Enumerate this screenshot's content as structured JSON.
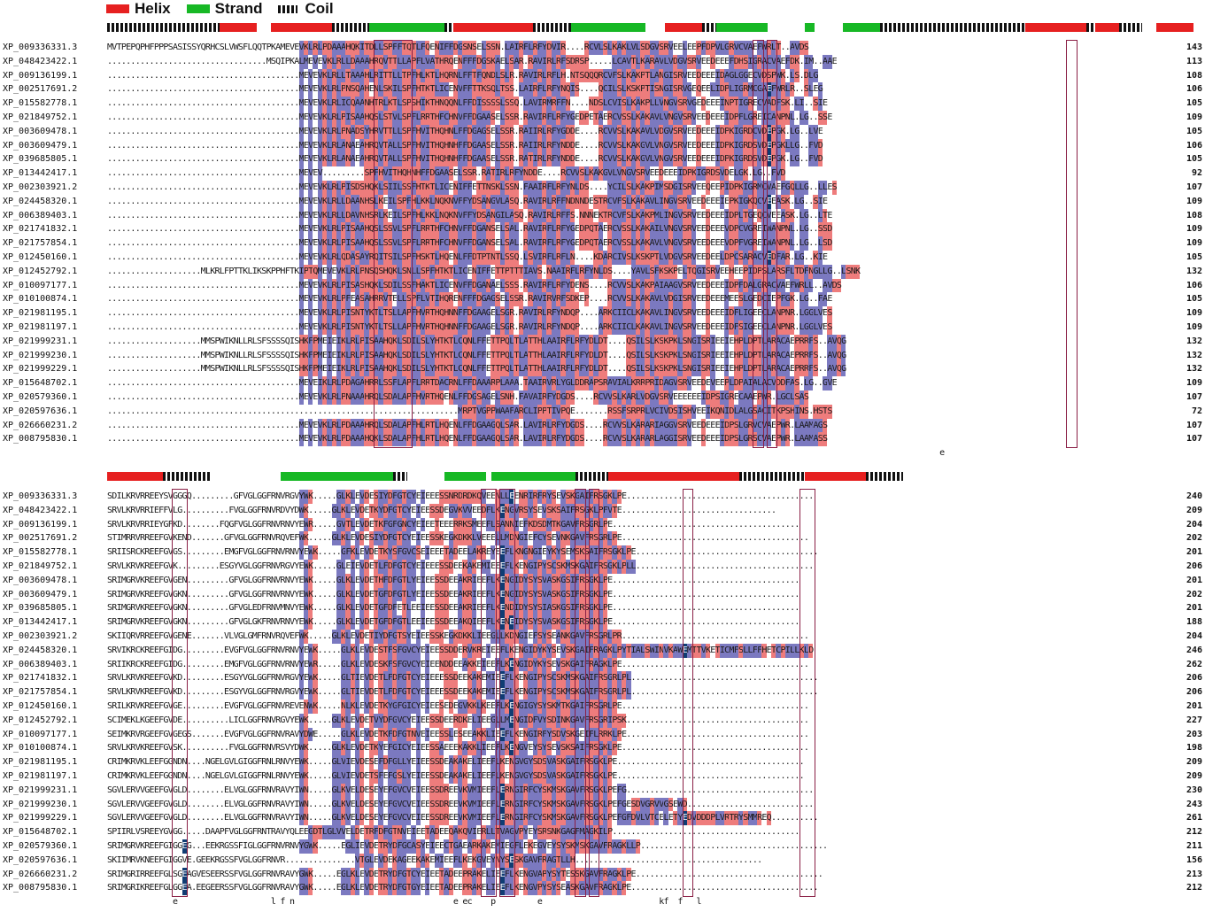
{
  "legend": [
    {
      "label": "Helix",
      "color": "#e62020",
      "kind": "helix"
    },
    {
      "label": "Strand",
      "color": "#17b825",
      "kind": "strand"
    },
    {
      "label": "Coil",
      "color": "#111111",
      "kind": "coil"
    }
  ],
  "colors": {
    "conserved_blue": "#7b79c0",
    "similar_red": "#ee7c7c",
    "identical_dark": "#0f3c73",
    "box": "#8a1f45"
  },
  "blocks": [
    {
      "ss": [
        {
          "t": "coil",
          "s": 0,
          "e": 24
        },
        {
          "t": "helix",
          "s": 24,
          "e": 32
        },
        {
          "t": "helix",
          "s": 35,
          "e": 48
        },
        {
          "t": "coil",
          "s": 48,
          "e": 56
        },
        {
          "t": "strand",
          "s": 56,
          "e": 72
        },
        {
          "t": "coil",
          "s": 72,
          "e": 74
        },
        {
          "t": "helix",
          "s": 74,
          "e": 91
        },
        {
          "t": "coil",
          "s": 91,
          "e": 99
        },
        {
          "t": "strand",
          "s": 99,
          "e": 115
        },
        {
          "t": "helix",
          "s": 119,
          "e": 127
        },
        {
          "t": "coil",
          "s": 127,
          "e": 130
        },
        {
          "t": "strand",
          "s": 130,
          "e": 141
        },
        {
          "t": "strand",
          "s": 149,
          "e": 151
        },
        {
          "t": "strand",
          "s": 157,
          "e": 165
        },
        {
          "t": "coil",
          "s": 165,
          "e": 196
        },
        {
          "t": "helix",
          "s": 196,
          "e": 209
        },
        {
          "t": "coil",
          "s": 209,
          "e": 211
        },
        {
          "t": "helix",
          "s": 211,
          "e": 216
        },
        {
          "t": "coil",
          "s": 216,
          "e": 221
        },
        {
          "t": "helix",
          "s": 224,
          "e": 232
        }
      ],
      "rows": [
        {
          "id": "XP_009336331.3",
          "seq": "MVTPEPQPHFPPPSASISSYQRHCSLVWSFLQQTPKAMEVEVKLRLPDAAAHQKITDLLSPFFTQTLFQENIFFDGSNSELSSN.LAIRFLRFYDVIR....RCVLSLKAKLVLSDGVSRVEELEEPFDPVLGRVCVAEFWRLT..AVDS",
          "num": "143"
        },
        {
          "id": "XP_048423422.1",
          "seq": "..................................MSQIPKALMEVEVKLRLLDAAAHRQVTTLLAPFLVATHRQENFFFDGSKAELSAR.RAVIRLRFSDRSP.....LCAVTLKARAVLVDGVSRVEEDEEEFDHSIGRACVAEFDK.IM..AAE",
          "num": "113"
        },
        {
          "id": "XP_009136199.1",
          "seq": ".........................................MEVEVKLRLLTAAAHLRITTLLTPFHLKTLHQRNLFFTFQNDLSLR.RAVIRLRFLH.NTSQQQRCVFSLKAKPTLANGISRVEEDEEEIDAGLGGECVDSPWK.LS.DLG",
          "num": "108"
        },
        {
          "id": "XP_002517691.2",
          "seq": ".........................................MEVEVKLRLPNSQAHENLSKILSPFHTKTLICENVFFTTKSQLTSS.LAIRFLRFYNQIS....QCILSLKSKPTISNGISRVGEQEELIDPLIGRMCGAEFWRLR..SLEG",
          "num": "106"
        },
        {
          "id": "XP_015582778.1",
          "seq": ".........................................MEVEVKLRLICQAANHTRLKTLSPSHIKTHNQQNLFFDISSSSLSSQ.LAVIRMRFFN....NDSLCVISLKAKPLLVNGVSRVGEDEEEINPTIGRECVADFSK.LI..SIE",
          "num": "105"
        },
        {
          "id": "XP_021849752.1",
          "seq": ".........................................MEVEVKLRLPISAAHQSLSTVLSPFLRRTHFCHNVFFDGAASELSSR.RAVIRFLRFYGEDPETAERCVSSLKAKAVLVNGVSRVEEDEEEIDPFLGREICANPNL.LG..SSE",
          "num": "109"
        },
        {
          "id": "XP_003609478.1",
          "seq": ".........................................MEVEVKLRLPNADSYHRVTTLLSPFHVITHQHNLFFDGAGSELSSR.RAIIRLRFYGDDE....RCVVSLKAKAVLVDGVSRVEEDEEEIDPKIGRDCVDEPGK.LG..LVE",
          "num": "105"
        },
        {
          "id": "XP_003609479.1",
          "seq": ".........................................MEVEVKLRLANAEAHRQVTALLSPFHVITHQHNHFFDGAASELSSR.RAIIRLRFYNDDE....RCVVSLKAKGVLVNGVSRVEEDEEEIDPKIGRDSVDEPGKLLG..FVD",
          "num": "106"
        },
        {
          "id": "XP_039685805.1",
          "seq": ".........................................MEVEVKLRLANAEAHRQVTALLSPFHVITHQHNHFFDGAASELSSR.RATIRLRFYNDDE....RCVVSLKAKGVLVNGVSRVEEDEEEIDPKIGRDSVDEPGK.LG..FVD",
          "num": "105"
        },
        {
          "id": "XP_013442417.1",
          "seq": ".........................................MEVEV.........SPFHVITHQHNHFFDGAASELSSR.RATIRLRFYNDDE....RCVVSLKAKGVLVNGVSRVEEDEEEIDPKIGRDSVDELGK.LG..FVD",
          "num": "92"
        },
        {
          "id": "XP_002303921.2",
          "seq": ".........................................MEVEVKLRLPISDSHQKLSIILSSFHTKTLICENIFFETTNSKLSSN.FAAIRFLRFYNLDS....YCILSLKAKPIMSDGISRVEEQEEPIDPKIGRMCVAEFGQLLG..LLES",
          "num": "107"
        },
        {
          "id": "XP_024458320.1",
          "seq": ".........................................MEVEVKLRLLDAANHSLKEILSPFHLKKLNQKNVFFYDSANGVLASQ.RAVIRLRFFNDNNDESTRCVFSLKAKAVLINGVSRVEEDEEEIEPKIGKQCVEEASK.LG..SIE",
          "num": "109"
        },
        {
          "id": "XP_006389403.1",
          "seq": ".........................................MEVEVKLRLLDAVNHSRLKEILSPFHLKKLNQKNVFFYDSANGILASQ.RAVIRLRFFS.NNNEKTRCVFSLKAKPMLINGVSRVEEDEEEIDPLTGEQCVEEASK.LG..LTE",
          "num": "108"
        },
        {
          "id": "XP_021741832.1",
          "seq": ".........................................MEVEVKLRLPISAAHQSLSSVLSPFLRRTHFCHNVFFDGANSELSAL.RAVIRFLRFYGEDPQTAERCVSSLKAKAILVNGVSRVEEDEEEVDPCVGREIWANPNL.LG..SSD",
          "num": "109"
        },
        {
          "id": "XP_021757854.1",
          "seq": ".........................................MEVEVKLRLPISAAHQSLSSVLSPFLRRTHFCHNVFFDGANSELSAL.RAVIRFLRFYGEDPQTAERCVSSLKAKAVLVNGVSRVEEDEEEVDPFVGREIWANPNL.LG..LSD",
          "num": "109"
        },
        {
          "id": "XP_012450160.1",
          "seq": ".........................................MEVEVKLRLQDASAYRQITSILSPFHSKTLHQENLFFDTPTNTLSSQ.LSVIRFLRFLN....KDARCIVSLKSKPTLVDGVSRVEEDEELDPCSARACVEDFAR.LG..KIE",
          "num": "105"
        },
        {
          "id": "XP_012452792.1",
          "seq": "....................MLKRLFPTTKLIKSKPPHFTKIPTQMEVEVKLRLPNSQSHQKLSNLLSPFHTKTLICENIFFETTPTTTIAVS.NAAIRFLRFYNLDS....YAVLSFKSKPELTQGISRVEEHEEPIDPSLARSFLTDFNGLLG..LSNK",
          "num": "132"
        },
        {
          "id": "XP_010097177.1",
          "seq": ".........................................MEVEVKLRLPISASHQKLSDILSSFHAKTLICENVFFDGANAELSSS.RAVIRFLRFYDENS....RCVVSLKAKPAIAAGVSRVEEDEEEIDPFDALGRACVAEFWRLL..AVDS",
          "num": "106"
        },
        {
          "id": "XP_010100874.1",
          "seq": ".........................................MEVEVKLRLPFEASAHRRVTELLSPFLVTIHQRENFFFDGAGSELSSR.RAVIRVRFSDKEP....RCVVSLKAKAVLVDGISRVEEDEEEMEESLGEDCIEPFGK.LG..FAE",
          "num": "105"
        },
        {
          "id": "XP_021981195.1",
          "seq": ".........................................MEVEVKLRLPISNTYKTLTSLLAPFHVRTHQHNNFFDGAAGELSGR.RAVIRLRFYNDQP....ARKCIICLKAKAVLINGVSRVEEDEEEIDFLIGEECLANPNR.LGGLVES",
          "num": "109"
        },
        {
          "id": "XP_021981197.1",
          "seq": ".........................................MEVEVKLRLPISNTYKTLTSLLAPFHVRTHQHNNFFDGAAGELSGR.RAVIRLRFYNDQP....ARKCIICLKAKAVLINGVSRVEEDEEEIDFSIGEECLANPNR.LGGLVES",
          "num": "109"
        },
        {
          "id": "XP_021999231.1",
          "seq": "....................MMSPWIKNLLRLSFSSSSQISHKFPMEIEIKLRLPISAAHQKLSDILSLYHTKTLCQNLFFETTPQLTLATTHLAAIRFLRFYDLDT....QSILSLKSKPKLSNGISRIEEIEHPLDPTLARACAEPRRFS..AVQG",
          "num": "132"
        },
        {
          "id": "XP_021999230.1",
          "seq": "....................MMSPWIKNLLRLSFSSSSQISHKFPMEIEIKLRLPISAAHQKLSDILSLYHTKTLCQNLFFETTPQLTLATTHLAAIRFLRFYDLDT....QSILSLKSKPKLSNGISRIEEIEHPLDPTLARACAEPRRFS..AVQG",
          "num": "132"
        },
        {
          "id": "XP_021999229.1",
          "seq": "....................MMSPWIKNLLRLSFSSSSQISHKFPMEIEIKLRLPISAAHQKLSDILSLYHTKTLCQNLFFETTPQLTLATTHLAAIRFLRFYDLDT....QSILSLKSKPKLSNGISRIEEIEHPLDPTLARACAEPRRFS..AVQG",
          "num": "132"
        },
        {
          "id": "XP_015648702.1",
          "seq": ".........................................MEVEIKLRLPDAGAHRRLSSFLAPFLRRTDACRNLFFDAAARPLAAA.TAAIRVRLYGLDDRAPSRAVIALKRRPRIDAGVSRVEEDEVEEPLDPAIALACVDDFAS.LG..GVE",
          "num": "109"
        },
        {
          "id": "XP_020579360.1",
          "seq": ".........................................MEVEVKLRLPNAAAHRQLSDALAPFHVRTHQENLFFDGSAGELSNH.FAVAIRFYDGDS....RCVVSLKARLVDGVSRVEEEEEEIDPSIGRECAAEPWR.LGCLSAS",
          "num": "107"
        },
        {
          "id": "XP_020597636.1",
          "seq": "...........................................................................MRPTVGPPWAAFARCLIPPTIVPQE.......RSSFSRPRLVCIVDSISHVEEIKQNIDLALGSACITKPSHINS.HSTS",
          "num": "72"
        },
        {
          "id": "XP_026660231.2",
          "seq": ".........................................MEVEVKLRLPDAAAHRQLSDALAPFHLRTLHQENLFFDGAAGQLSAR.LAVIRLRFYDGDS....RCVVSLKARARIAGGVSRVEEDEEEIDPSLGRVCVAEPWR.LAAMAGS",
          "num": "107"
        },
        {
          "id": "XP_008795830.1",
          "seq": ".........................................MEVEVKLRLPDAAAHQKLSDALAPFHLRTLHQENLFFDGAAGQLSAR.LAVIRLRFYDGDS....RCVVSLKARARLAGGISRVEEDEEEIDPSLGRSCVAEPWR.LAAMASS",
          "num": "107"
        }
      ],
      "consensus": "..................................................................................................................................................................................e..................................."
    },
    {
      "ss": [
        {
          "t": "helix",
          "s": 0,
          "e": 12
        },
        {
          "t": "coil",
          "s": 12,
          "e": 22
        },
        {
          "t": "strand",
          "s": 37,
          "e": 61
        },
        {
          "t": "coil",
          "s": 61,
          "e": 64
        },
        {
          "t": "strand",
          "s": 72,
          "e": 81
        },
        {
          "t": "strand",
          "s": 82,
          "e": 84
        },
        {
          "t": "strand",
          "s": 84,
          "e": 100
        },
        {
          "t": "coil",
          "s": 100,
          "e": 107
        },
        {
          "t": "helix",
          "s": 107,
          "e": 135
        },
        {
          "t": "coil",
          "s": 135,
          "e": 149
        },
        {
          "t": "helix",
          "s": 149,
          "e": 162
        },
        {
          "t": "coil",
          "s": 162,
          "e": 170
        }
      ],
      "rows": [
        {
          "id": "XP_009336331.3",
          "seq": "SDILKRVRREEYSVGGGQ.........GFVGLGGFRNVRGVYWK.....GLKLEVDESIYDFGTCYEIEEESSNRDRDKQVEENLLEENRIRFRYSEVSKGAIFRSGKLPE........................................",
          "num": "240"
        },
        {
          "id": "XP_048423422.1",
          "seq": "SRVLKRVRRIEFFVLG..........FVGLGGFRNVRDVYDWK.....GLKLEVDETKYDFGTCYEIEESSDEGVKVVEEDFLKENGVRSYSEVSKSAIFRSGKLPFVTE.................................",
          "num": "209"
        },
        {
          "id": "XP_009136199.1",
          "seq": "SRVLKRVRRIEYGFKD........FQGFVGLGGFRNVRNVYEWR.....GVTLEVDETKFGFGNCYEIEETEEERRKSMEEFLSANNIEFKDSDMTKGAVFRSGRLPE........................................",
          "num": "204"
        },
        {
          "id": "XP_002517691.2",
          "seq": "STIMRRVRREEFGVKEND.......GFVGLGGFRNVRQVEFWK.....GLKLEVDESIYDFGTCYEIEESSKEGKDKKLVEEELLMDNGIEFCYSEVNKGAVFRSGRLPE........................................",
          "num": "202"
        },
        {
          "id": "XP_015582778.1",
          "seq": "SRIISRCKREEFGVGS.........EMGFVGLGGFRNVRNVYEWK.....GFKLEVDETKYSFGVCSEIEEETADEELAKREYEEFLKNGNGIEYKYSEMSKSAIFRSGKLPE.......................................",
          "num": "201"
        },
        {
          "id": "XP_021849752.1",
          "seq": "SRVLKRVKREEFGVK.........ESGYVGLGGFRNVRGVYEWK.....GLEIEVDETLFDFGTCYEIEEESSDEEKAKEMIEEEFLKENGIPYSCSKMSKGAIFRSGKLPLL......................................",
          "num": "206"
        },
        {
          "id": "XP_003609478.1",
          "seq": "SRIMGRVKREEFGVGEN.........GFVGLGGFRNVRNVYEWK.....GLKLEVDETHFDFGTLYEIEESSDEEAKRIEEFLKENGIDYSYSVASKGSIFRSGKLPE........................................",
          "num": "201"
        },
        {
          "id": "XP_003609479.1",
          "seq": "SRIMGRVKREEFGVGKN.........GFVGLGGFRNVRNVYEWK.....GLKLEVDETGFDFGTLYEIEESSDEEAKRIEEFLKENGIDYSYSVASKGSIFRSGKLPE........................................",
          "num": "202"
        },
        {
          "id": "XP_039685805.1",
          "seq": "SRIMGRVKREEFGVGKN.........GFVGLEDFRNVMNVYEWK.....GLKLEVDETGFDFETLEEIEESSDEEAKRIEEFLKENDIDYSYSIASKGSIFRSGKLPE........................................",
          "num": "201"
        },
        {
          "id": "XP_013442417.1",
          "seq": "SRIMGRVKREEFGVGKN.........GFVGLGKFRNVRNVYEWK.....GLKLEVDETGFDFGTLEEIEESSDEEAKQIEEFLKENEIDYSYSVASKGSIFRSGKLPE........................................",
          "num": "188"
        },
        {
          "id": "XP_002303921.2",
          "seq": "SKIIQRVRREEFGVGENE.......VLVGLGMFRNVRQVEFWK.....GLKLEVDETIYDFGTSYEIEESSKEGKDKKLIEEGLLKDNGIEFSYSEANKGAVFRSGRLPR........................................",
          "num": "204"
        },
        {
          "id": "XP_024458320.1",
          "seq": "SRVIKRCKREEFGIDG.........EVGFVGLGGFRNVRNVYEWK.....GLKLEVDESTFSFGVCYEIEESSDDERVKREIEEFLKENGIDYKYSEVSKGAIFRAGKLPYTIALSWINVKAWEMTTVKETICMFSLLFFHETCPILLKLD",
          "num": "246"
        },
        {
          "id": "XP_006389403.1",
          "seq": "SRIIKRCKREEFGIDG.........EMGFVGLGGFRNVRNVYEWR.....GLKLEVDESKFSFGVCYEIEENDDEEAKKEIEEFLKENGIDYKYSEVSKGAIFRAGKLPE........................................",
          "num": "262"
        },
        {
          "id": "XP_021741832.1",
          "seq": "SRVLKRVKREEFGVKD.........ESGYVGLGGFRNVRGVYEWK.....GLTIEVDETLFDFGTCYEIEEESSDEEKAKEMIEEFLKENGIPYSCSKMSKGAIFRSGRLPL........................................",
          "num": "206"
        },
        {
          "id": "XP_021757854.1",
          "seq": "SRVLKRVKREEFGVKD.........ESGYVGLGGFRNVRGVYEWK.....GLTIEVDETLFDFGTCYEIEEESSDEEKAKEMIEEFLKENGIPYSCSKMSKGAIFRSGRLPL........................................",
          "num": "206"
        },
        {
          "id": "XP_012450160.1",
          "seq": "SRILKRVKREEFGVGE.........EVGFVGLGGFRNVREVENWK.....NLKLEVDETKYGFGICYEIEESEDEGVKKLKEEFLKENGIGYSYSKMTKGAIFRSGRLPE........................................",
          "num": "201"
        },
        {
          "id": "XP_012452792.1",
          "seq": "SCIMEKLKGEEFGVDE..........LICLGGFRNVRGVYEWK.....GLKLEVDETVYDFGVCYEIEESSDEERDKELIEEGLLMENGIDFVYSDINKGAVFRSGRIPSK.......................................",
          "num": "227"
        },
        {
          "id": "XP_010097177.1",
          "seq": "SEIMKRVRGEEFGVGEGS.......EVGFVGLGGFRNVRAVYDWE.....GLKLEVDETKFDFGTNVEIEESSLESEEAKKLIEEFLKENGIRFYSDVSKGEIFLRRKLPE.......................................",
          "num": "203"
        },
        {
          "id": "XP_010100874.1",
          "seq": "SRVLKRVKREEFGVSK..........FVGLGGFRNVRSVYDWK.....GLKLEVDETKYEFGICYEIEESSAEEEKAKKLIEEFLKENGVEYSYSEVSKSAIFRSGKLPE........................................",
          "num": "198"
        },
        {
          "id": "XP_021981195.1",
          "seq": "CRIMKRVKLEEFGGNDN....NGELGVLGIGGFRNLRNVYEWK.....GLVIEVDESEFDFGLLYEIEESSDEAKAKELIEEFLKENGVGYSDSVASKGAIFRSGKLPE........................................",
          "num": "209"
        },
        {
          "id": "XP_021981197.1",
          "seq": "CRIMKRVKLEEFGGNDN....NGELGVLGIGGFRNLRNVYEWK.....GLVIEVDETSFEFGSLYEIEESSDEAKAKELIEEFLKENGVGYSDSVASKGAIFRSGKLPE........................................",
          "num": "209"
        },
        {
          "id": "XP_021999231.1",
          "seq": "SGVLERVVGEEFGVGLD........ELVGLGGFRNVRAVYIWN.....GLKVELDESEYEFGVCVEIEESSDREEVKVMIEEFLERNGIRFCYSKMSKGAVFRSGKLPEFG........................................",
          "num": "230"
        },
        {
          "id": "XP_021999230.1",
          "seq": "SGVLERVVGEEFGVGLD........ELVGLGGFRNVRAVYIWN.....GLKVELDESEYEFGVCVEIEESSDREEVKVMIEEFLERNGIRFCYSKMSKGAVFRSGKLPEFGESDVGRVVGSEWD...........................",
          "num": "243"
        },
        {
          "id": "XP_021999229.1",
          "seq": "SGVLERVVGEEFGVGLD........ELVGLGGFRNVRAVYIWN.....GLKVELDESEYEFGVCVEIEESSDREEVKVMIEEFLERNGIRFCYSKMSKGAVFRSGKLPEFGFDVLVTCELETYEDVDDDPLVRTRYSMMREQ..........",
          "num": "261"
        },
        {
          "id": "XP_015648702.1",
          "seq": "SPIIRLVSREEYGVGG.....DAAPFVGLGGFRNTRAVYQLEEGDTLGLVVELDETRFDFGTNVEIEETADEEQAKQVIERLLTVAGVPYEYSRSNKGAGFMAGKILP........................................",
          "num": "212"
        },
        {
          "id": "XP_020579360.1",
          "seq": "SRIMGRVKREEFGIGGEG...EEKRGSSFIGLGGFRNVRNVYGWK.....EGLIEVDETRYDFGCASYEIEECTGAEARKAKEMIEGFLEKEGVEYSYSKMSKGAVFRAGKLLP........................................",
          "num": "211"
        },
        {
          "id": "XP_020597636.1",
          "seq": "SKIIMRVKNEEFGIGGVE.GEEKRGSSFVGLGGFRNVR...............VTGLEVDEKAGEEKAKEMIEEFLKEKGVEYNYSESKGAVFRAGTLLH........................................",
          "num": "156"
        },
        {
          "id": "XP_026660231.2",
          "seq": "SRIMGRIRREEFGLSGEAGVESEERSSFVGLGGFRNVRAVYGWK.....EGLKLEVDETRYDFGTCYEIEETADEEPRAKELIEEFLKENGVAPYSYTESSKGAVFRAGKLPE........................................",
          "num": "213"
        },
        {
          "id": "XP_008795830.1",
          "seq": "SRIMGRIKREEFGLGGEA.EEGEERSSFVGLGGFRNVRAVYGWK.....EGLKLEVDETRYDFGTGYEIEETADEEPRAKELIEEFLKENGVPYSYSEASKGAVFRAGKLPE........................................",
          "num": "212"
        }
      ],
      "consensus": "..............e....................l.f.n..................................e.ec....p.........e.........................kf..f...l................................"
    }
  ]
}
